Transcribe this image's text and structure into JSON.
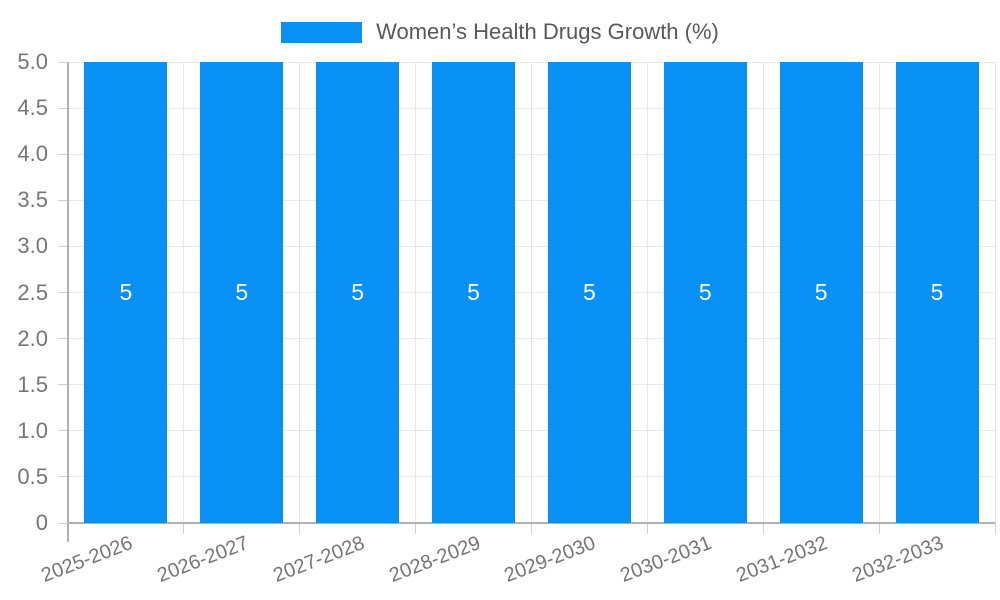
{
  "legend": {
    "label": "Women’s Health Drugs Growth (%)"
  },
  "chart_data": {
    "type": "bar",
    "title": "Women’s Health Drugs Growth (%)",
    "categories": [
      "2025-2026",
      "2026-2027",
      "2027-2028",
      "2028-2029",
      "2029-2030",
      "2030-2031",
      "2031-2032",
      "2032-2033"
    ],
    "values": [
      5,
      5,
      5,
      5,
      5,
      5,
      5,
      5
    ],
    "bar_labels": [
      "5",
      "5",
      "5",
      "5",
      "5",
      "5",
      "5",
      "5"
    ],
    "xlabel": "",
    "ylabel": "",
    "ylim": [
      0,
      5
    ],
    "ytick_labels": [
      "0",
      "0.5",
      "1.0",
      "1.5",
      "2.0",
      "2.5",
      "3.0",
      "3.5",
      "4.0",
      "4.5",
      "5.0"
    ],
    "grid": true,
    "legend_position": "top-center",
    "colors": {
      "bar": "#0890f5",
      "grid": "#e8e8e8",
      "tick": "#cfcfcf",
      "axis": "#b0b0b0",
      "tick_text": "#757575",
      "legend_text": "#58585a",
      "bar_label_text": "#ffffff"
    }
  }
}
